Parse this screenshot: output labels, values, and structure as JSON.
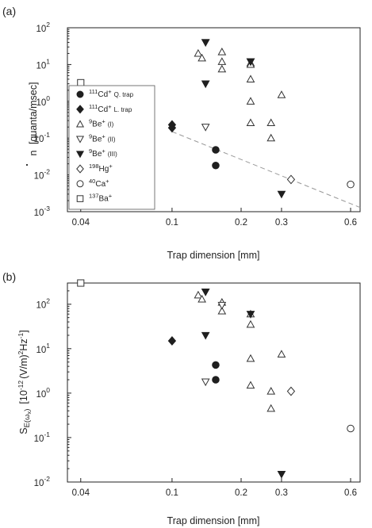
{
  "chart_data": [
    {
      "panel": "(a)",
      "type": "scatter",
      "xscale": "log",
      "yscale": "log",
      "xlim": [
        0.035,
        0.66
      ],
      "ylim": [
        0.001,
        100
      ],
      "xticks": [
        {
          "v": 0.04,
          "label": "0.04"
        },
        {
          "v": 0.1,
          "label": "0.1"
        },
        {
          "v": 0.2,
          "label": "0.2"
        },
        {
          "v": 0.3,
          "label": "0.3"
        },
        {
          "v": 0.6,
          "label": "0.6"
        }
      ],
      "yticks": [
        {
          "v": 0.001,
          "base": "10",
          "exp": "-3"
        },
        {
          "v": 0.01,
          "base": "10",
          "exp": "-2"
        },
        {
          "v": 0.1,
          "base": "10",
          "exp": "-1"
        },
        {
          "v": 1,
          "base": "10",
          "exp": "0"
        },
        {
          "v": 10,
          "base": "10",
          "exp": "1"
        },
        {
          "v": 100,
          "base": "10",
          "exp": "2"
        }
      ],
      "xlabel": "Trap dimension [mm]",
      "ylabel": {
        "symbol": "n",
        "unit": "[quanta/msec]"
      },
      "legend_position": "inside-left",
      "legend": [
        {
          "marker": "circle-filled",
          "pre": "111",
          "ion": "Cd",
          "charge": "+",
          "note": "Q. trap"
        },
        {
          "marker": "diamond-filled",
          "pre": "111",
          "ion": "Cd",
          "charge": "+",
          "note": "L. trap"
        },
        {
          "marker": "triangle-up-open",
          "pre": "9",
          "ion": "Be",
          "charge": "+",
          "note": "(I)"
        },
        {
          "marker": "triangle-down-open",
          "pre": "9",
          "ion": "Be",
          "charge": "+",
          "note": "(II)"
        },
        {
          "marker": "triangle-down-filled",
          "pre": "9",
          "ion": "Be",
          "charge": "+",
          "note": "(III)"
        },
        {
          "marker": "diamond-open",
          "pre": "198",
          "ion": "Hg",
          "charge": "+",
          "note": ""
        },
        {
          "marker": "circle-open",
          "pre": "40",
          "ion": "Ca",
          "charge": "+",
          "note": ""
        },
        {
          "marker": "square-open",
          "pre": "137",
          "ion": "Ba",
          "charge": "+",
          "note": ""
        }
      ],
      "fit_line": {
        "x": [
          0.1,
          0.66
        ],
        "y": [
          0.15,
          0.0013
        ]
      },
      "series": [
        {
          "marker": "circle-filled",
          "x": [
            0.155,
            0.155
          ],
          "y": [
            0.048,
            0.018
          ]
        },
        {
          "marker": "diamond-filled",
          "x": [
            0.1,
            0.1
          ],
          "y": [
            0.23,
            0.19
          ]
        },
        {
          "marker": "triangle-up-open",
          "x": [
            0.13,
            0.135,
            0.165,
            0.165,
            0.165,
            0.22,
            0.22,
            0.22,
            0.22,
            0.22,
            0.27,
            0.27,
            0.3
          ],
          "y": [
            20,
            15,
            22,
            12,
            7.5,
            11,
            4,
            1,
            0.26,
            10,
            0.26,
            0.1,
            1.5
          ]
        },
        {
          "marker": "triangle-down-open",
          "x": [
            0.14,
            0.14,
            0.22
          ],
          "y": [
            40,
            0.2,
            12
          ]
        },
        {
          "marker": "triangle-down-filled",
          "x": [
            0.14,
            0.14,
            0.22,
            0.3
          ],
          "y": [
            40,
            3,
            12,
            0.003
          ]
        },
        {
          "marker": "diamond-open",
          "x": [
            0.33
          ],
          "y": [
            0.0075
          ]
        },
        {
          "marker": "circle-open",
          "x": [
            0.6
          ],
          "y": [
            0.0055
          ]
        },
        {
          "marker": "square-open",
          "x": [
            0.04
          ],
          "y": [
            3.2
          ]
        }
      ]
    },
    {
      "panel": "(b)",
      "type": "scatter",
      "xscale": "log",
      "yscale": "log",
      "xlim": [
        0.035,
        0.66
      ],
      "ylim": [
        0.01,
        300
      ],
      "xticks": [
        {
          "v": 0.04,
          "label": "0.04"
        },
        {
          "v": 0.1,
          "label": "0.1"
        },
        {
          "v": 0.2,
          "label": "0.2"
        },
        {
          "v": 0.3,
          "label": "0.3"
        },
        {
          "v": 0.6,
          "label": "0.6"
        }
      ],
      "yticks": [
        {
          "v": 0.01,
          "base": "10",
          "exp": "-2"
        },
        {
          "v": 0.1,
          "base": "10",
          "exp": "-1"
        },
        {
          "v": 1,
          "base": "10",
          "exp": "0"
        },
        {
          "v": 10,
          "base": "10",
          "exp": "1"
        },
        {
          "v": 100,
          "base": "10",
          "exp": "2"
        }
      ],
      "xlabel": "Trap dimension [mm]",
      "ylabel": {
        "main": "S",
        "sub": "E(ω",
        "subsub": "x",
        "close": ")",
        "unit": "[10",
        "unit_exp": "-12",
        "unit_rest": "(V/m)",
        "unit_exp2": "2",
        "unit_hz": "Hz",
        "unit_exp3": "-1",
        "unit_close": "]"
      },
      "series": [
        {
          "marker": "circle-filled",
          "x": [
            0.155,
            0.155
          ],
          "y": [
            4.3,
            2.0
          ]
        },
        {
          "marker": "diamond-filled",
          "x": [
            0.1
          ],
          "y": [
            15
          ]
        },
        {
          "marker": "triangle-up-open",
          "x": [
            0.13,
            0.135,
            0.165,
            0.165,
            0.22,
            0.22,
            0.22,
            0.22,
            0.27,
            0.27,
            0.3
          ],
          "y": [
            160,
            130,
            110,
            70,
            60,
            35,
            6,
            1.5,
            1.1,
            0.45,
            7.5
          ]
        },
        {
          "marker": "triangle-down-open",
          "x": [
            0.14,
            0.14,
            0.165
          ],
          "y": [
            190,
            1.8,
            95
          ]
        },
        {
          "marker": "triangle-down-filled",
          "x": [
            0.14,
            0.14,
            0.22,
            0.3
          ],
          "y": [
            190,
            20,
            60,
            0.015
          ]
        },
        {
          "marker": "diamond-open",
          "x": [
            0.33
          ],
          "y": [
            1.1
          ]
        },
        {
          "marker": "circle-open",
          "x": [
            0.6
          ],
          "y": [
            0.16
          ]
        },
        {
          "marker": "square-open",
          "x": [
            0.04
          ],
          "y": [
            300
          ]
        }
      ]
    }
  ]
}
